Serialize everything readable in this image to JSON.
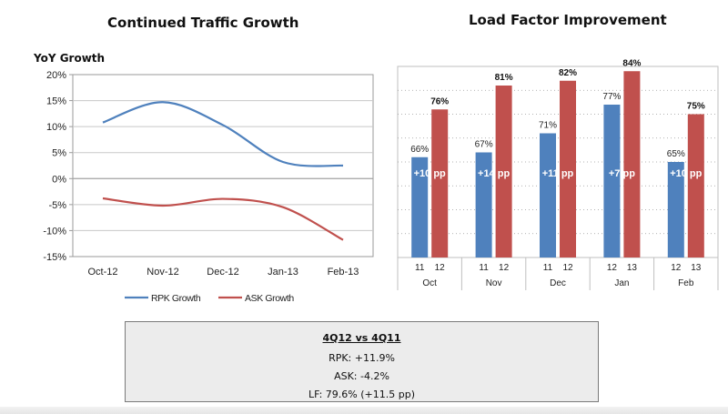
{
  "chart_data": [
    {
      "type": "line",
      "title": "Continued Traffic Growth",
      "ylabel": "YoY Growth",
      "xlabel": "",
      "categories": [
        "Oct-12",
        "Nov-12",
        "Dec-12",
        "Jan-13",
        "Feb-13"
      ],
      "series": [
        {
          "name": "RPK Growth",
          "color": "#4f81bd",
          "values": [
            10.8,
            14.7,
            10.3,
            3.2,
            2.5
          ]
        },
        {
          "name": "ASK Growth",
          "color": "#c0504d",
          "values": [
            -3.8,
            -5.2,
            -3.9,
            -5.5,
            -11.8
          ]
        }
      ],
      "y_ticks": [
        "20%",
        "15%",
        "10%",
        "5%",
        "0%",
        "-5%",
        "-10%",
        "-15%"
      ],
      "ylim": [
        -15,
        20
      ],
      "grid": true,
      "legend_position": "bottom"
    },
    {
      "type": "bar",
      "title": "Load Factor Improvement",
      "groups": [
        {
          "month": "Oct",
          "prev_year": "11",
          "curr_year": "12",
          "prev": 66,
          "curr": 76,
          "prev_label": "66%",
          "curr_label": "76%",
          "delta": "+10 pp"
        },
        {
          "month": "Nov",
          "prev_year": "11",
          "curr_year": "12",
          "prev": 67,
          "curr": 81,
          "prev_label": "67%",
          "curr_label": "81%",
          "delta": "+14 pp"
        },
        {
          "month": "Dec",
          "prev_year": "11",
          "curr_year": "12",
          "prev": 71,
          "curr": 82,
          "prev_label": "71%",
          "curr_label": "82%",
          "delta": "+11 pp"
        },
        {
          "month": "Jan",
          "prev_year": "12",
          "curr_year": "13",
          "prev": 77,
          "curr": 84,
          "prev_label": "77%",
          "curr_label": "84%",
          "delta": "+7 pp"
        },
        {
          "month": "Feb",
          "prev_year": "12",
          "curr_year": "13",
          "prev": 65,
          "curr": 75,
          "prev_label": "65%",
          "curr_label": "75%",
          "delta": "+10 pp"
        }
      ],
      "colors": {
        "prev": "#4f81bd",
        "curr": "#c0504d"
      },
      "ylim": [
        45,
        85
      ]
    }
  ],
  "summary": {
    "heading": "4Q12 vs 4Q11",
    "rpk": "RPK: +11.9%",
    "ask": "ASK: -4.2%",
    "lf": "LF: 79.6% (+11.5 pp)"
  }
}
